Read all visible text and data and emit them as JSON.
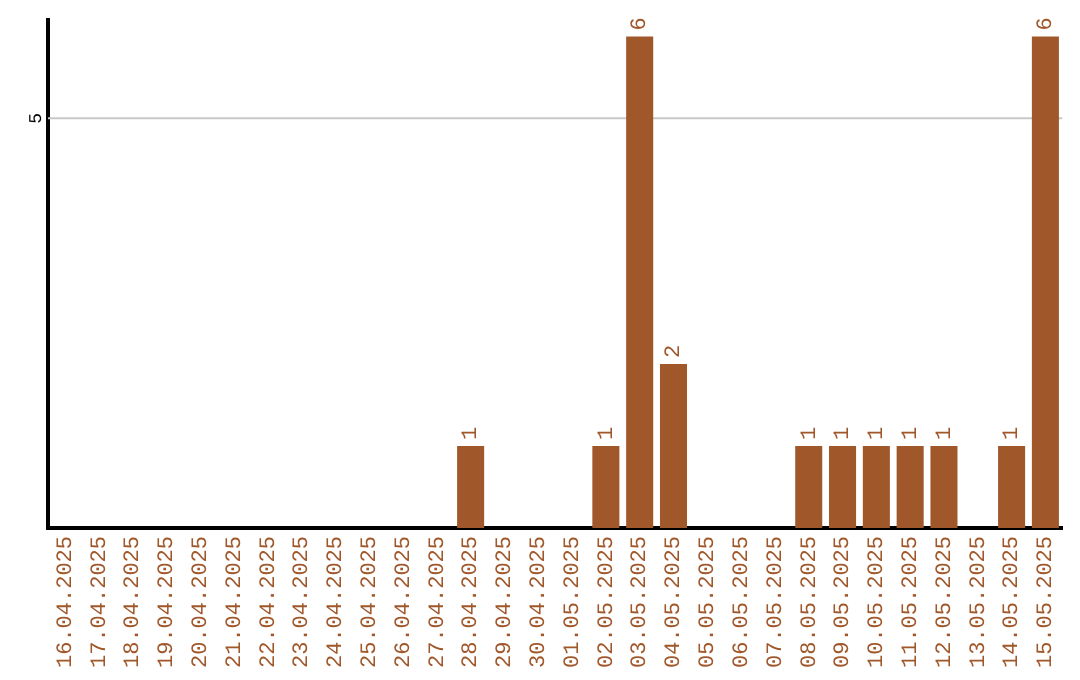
{
  "chart_data": {
    "type": "bar",
    "categories": [
      "16.04.2025",
      "17.04.2025",
      "18.04.2025",
      "19.04.2025",
      "20.04.2025",
      "21.04.2025",
      "22.04.2025",
      "23.04.2025",
      "24.04.2025",
      "25.04.2025",
      "26.04.2025",
      "27.04.2025",
      "28.04.2025",
      "29.04.2025",
      "30.04.2025",
      "01.05.2025",
      "02.05.2025",
      "03.05.2025",
      "04.05.2025",
      "05.05.2025",
      "06.05.2025",
      "07.05.2025",
      "08.05.2025",
      "09.05.2025",
      "10.05.2025",
      "11.05.2025",
      "12.05.2025",
      "13.05.2025",
      "14.05.2025",
      "15.05.2025"
    ],
    "values": [
      null,
      null,
      null,
      null,
      null,
      null,
      null,
      null,
      null,
      null,
      null,
      null,
      1,
      null,
      null,
      null,
      1,
      6,
      2,
      null,
      null,
      null,
      1,
      1,
      1,
      1,
      1,
      null,
      1,
      6
    ],
    "value_labels": [
      null,
      null,
      null,
      null,
      null,
      null,
      null,
      null,
      null,
      null,
      null,
      null,
      "1",
      null,
      null,
      null,
      "1",
      "6",
      "2",
      null,
      null,
      null,
      "1",
      "1",
      "1",
      "1",
      "1",
      null,
      "1",
      "6"
    ],
    "color": "#a0572a",
    "ylim": [
      0,
      6.2
    ],
    "ref_lines": [
      {
        "axis": "y",
        "value": 5,
        "label": "5",
        "color": "#c8c8c8"
      }
    ],
    "legend": false
  }
}
